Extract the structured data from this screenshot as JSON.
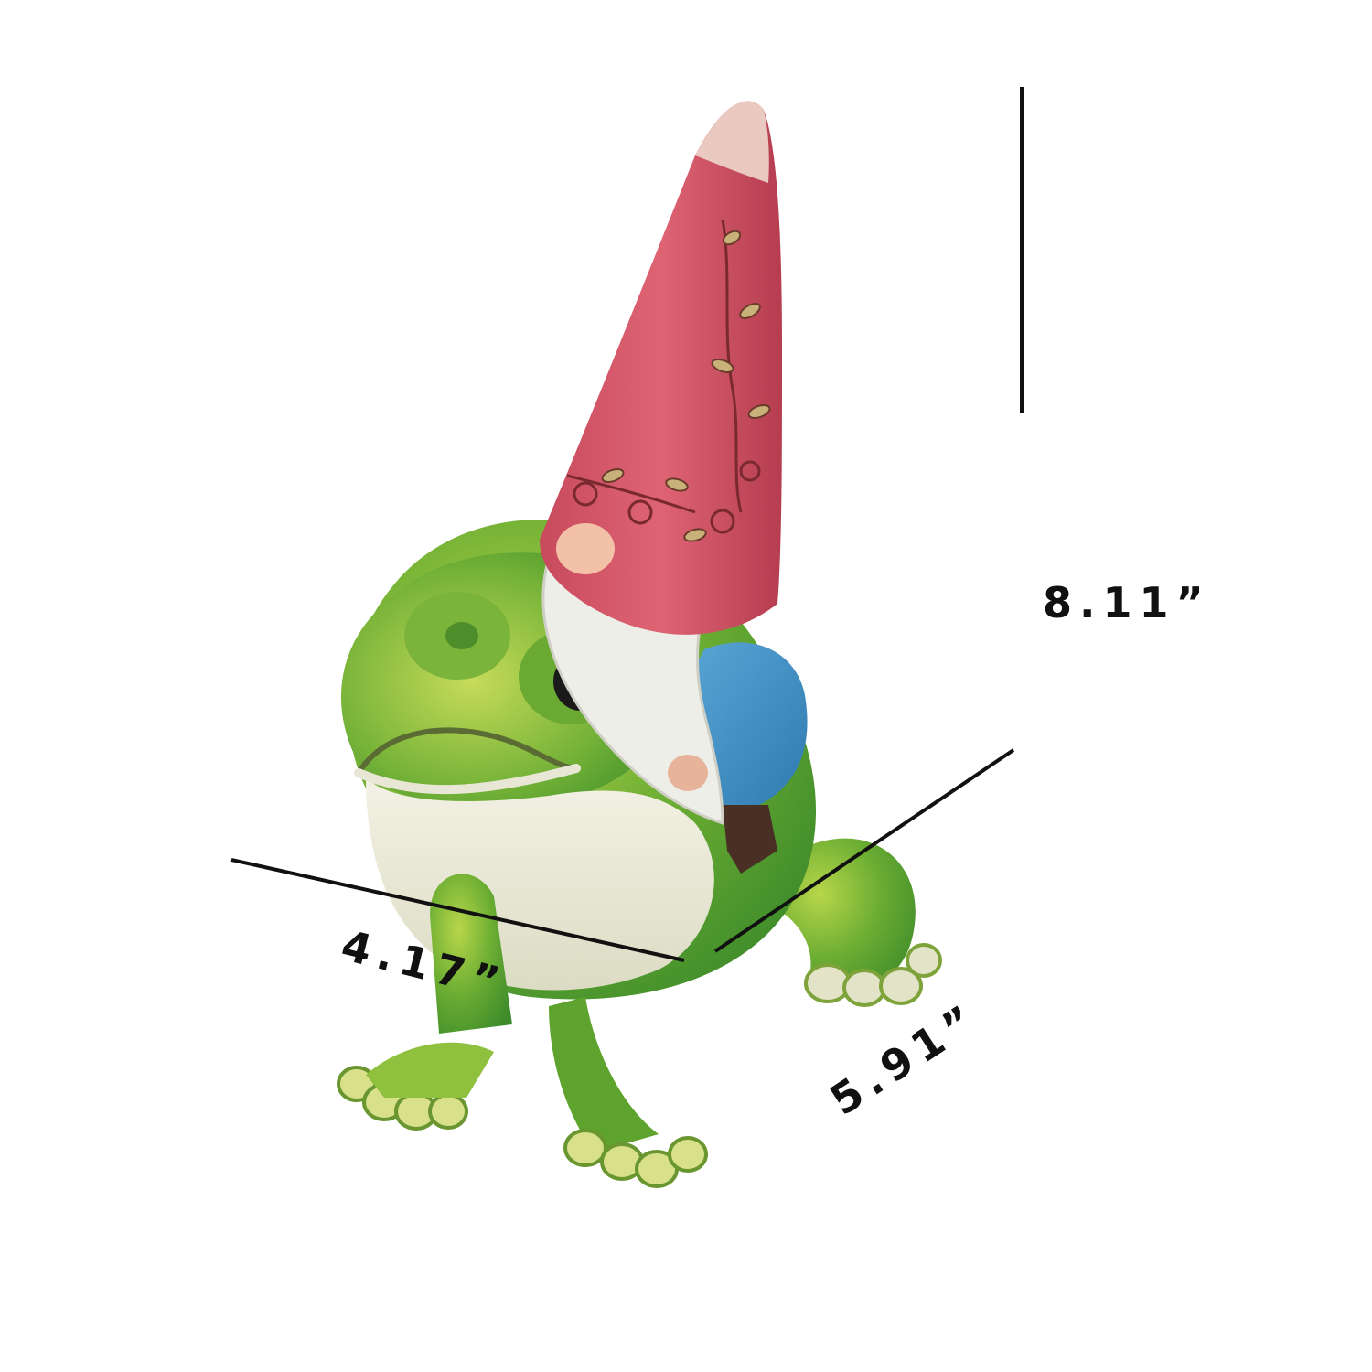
{
  "image": {
    "subject": "gnome-riding-frog-figurine",
    "background_color": "#ffffff",
    "colors": {
      "hat": "#d8596a",
      "hat_shadow": "#b53d4f",
      "beard": "#eeeee8",
      "coat": "#3f8fc4",
      "boot": "#4a2f24",
      "frog_dark": "#3f8f2a",
      "frog_mid": "#6dae33",
      "frog_light": "#a9cf45",
      "belly": "#efeee0",
      "dimension_line": "#111111"
    }
  },
  "dimensions": {
    "height": "8.11”",
    "width": "4.17”",
    "depth": "5.91”"
  }
}
